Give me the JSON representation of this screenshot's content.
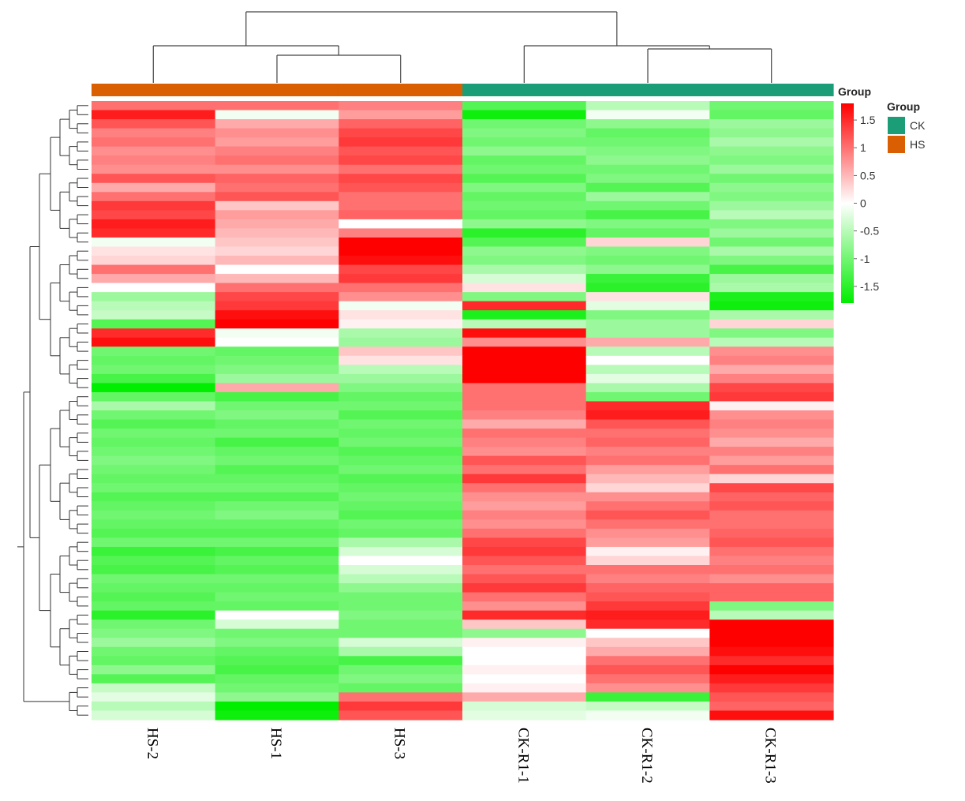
{
  "chart_data": {
    "type": "heatmap",
    "columns": [
      "HS-2",
      "HS-1",
      "HS-3",
      "CK-R1-1",
      "CK-R1-2",
      "CK-R1-3"
    ],
    "column_groups": [
      "HS",
      "HS",
      "HS",
      "CK",
      "CK",
      "CK"
    ],
    "groups": [
      {
        "name": "CK",
        "color": "#1b9e77"
      },
      {
        "name": "HS",
        "color": "#d95f02"
      }
    ],
    "group_annotation_title": "Group",
    "legend_title": "Group",
    "color_scale": {
      "min": -1.8,
      "max": 1.8,
      "low_color": "#00ee00",
      "mid_color": "#ffffff",
      "high_color": "#ff0000",
      "ticks": [
        1.5,
        1,
        0.5,
        0,
        -0.5,
        -1,
        -1.5
      ],
      "tick_labels": [
        "1.5",
        "1",
        "0.5",
        "0",
        "-0.5",
        "-1",
        "-1.5"
      ]
    },
    "values": [
      [
        1.0,
        1.0,
        0.9,
        -1.2,
        -0.5,
        -1.0
      ],
      [
        1.6,
        -0.1,
        0.7,
        -1.7,
        -0.1,
        -1.1
      ],
      [
        1.2,
        0.6,
        1.1,
        -1.0,
        -0.8,
        -0.7
      ],
      [
        0.9,
        0.8,
        1.3,
        -0.9,
        -1.1,
        -0.8
      ],
      [
        1.0,
        0.7,
        1.4,
        -1.0,
        -1.0,
        -0.6
      ],
      [
        0.8,
        0.9,
        1.2,
        -0.8,
        -0.9,
        -0.8
      ],
      [
        0.9,
        1.0,
        1.3,
        -1.1,
        -0.8,
        -0.9
      ],
      [
        0.8,
        0.8,
        1.0,
        -1.0,
        -1.0,
        -0.7
      ],
      [
        1.2,
        1.1,
        1.3,
        -1.2,
        -0.9,
        -1.0
      ],
      [
        0.6,
        1.0,
        1.2,
        -0.9,
        -1.2,
        -0.8
      ],
      [
        1.0,
        1.2,
        1.0,
        -1.1,
        -0.7,
        -0.9
      ],
      [
        1.4,
        0.4,
        1.0,
        -1.0,
        -1.0,
        -0.7
      ],
      [
        1.3,
        0.7,
        1.1,
        -1.1,
        -1.3,
        -0.5
      ],
      [
        1.6,
        0.6,
        0.0,
        -0.8,
        -0.9,
        -0.9
      ],
      [
        1.5,
        0.5,
        0.9,
        -1.5,
        -1.1,
        -0.7
      ],
      [
        -0.1,
        0.4,
        1.8,
        -1.2,
        0.3,
        -1.0
      ],
      [
        0.2,
        0.3,
        1.8,
        -0.8,
        -0.9,
        -0.6
      ],
      [
        0.3,
        0.5,
        1.7,
        -0.9,
        -1.0,
        -0.9
      ],
      [
        1.0,
        0.0,
        1.3,
        -0.6,
        -0.8,
        -1.3
      ],
      [
        0.6,
        0.5,
        1.4,
        -0.3,
        -1.4,
        -0.7
      ],
      [
        0.0,
        1.0,
        1.0,
        0.2,
        -1.5,
        -0.6
      ],
      [
        -0.7,
        1.3,
        0.8,
        -0.9,
        0.2,
        -1.6
      ],
      [
        -0.5,
        1.4,
        -0.1,
        1.5,
        -0.2,
        -1.7
      ],
      [
        -0.4,
        1.7,
        0.2,
        -1.6,
        -0.9,
        -0.6
      ],
      [
        -1.2,
        1.8,
        0.1,
        -0.5,
        -0.7,
        0.3
      ],
      [
        1.5,
        -0.1,
        -0.6,
        1.7,
        -0.7,
        -0.9
      ],
      [
        1.7,
        0.0,
        -0.7,
        0.8,
        0.6,
        -0.5
      ],
      [
        -1.0,
        -1.1,
        0.4,
        1.8,
        -0.5,
        0.8
      ],
      [
        -1.1,
        -1.0,
        0.2,
        1.9,
        0.0,
        0.9
      ],
      [
        -1.0,
        -0.9,
        -0.5,
        1.8,
        -0.5,
        0.6
      ],
      [
        -1.3,
        -0.7,
        -0.7,
        1.8,
        -0.2,
        0.9
      ],
      [
        -1.9,
        0.6,
        -0.9,
        1.0,
        -0.6,
        1.3
      ],
      [
        -1.1,
        -1.3,
        -1.1,
        1.0,
        -1.0,
        1.4
      ],
      [
        -0.6,
        -1.0,
        -1.0,
        1.0,
        1.5,
        0.1
      ],
      [
        -1.0,
        -0.9,
        -1.2,
        0.9,
        1.6,
        0.8
      ],
      [
        -1.2,
        -1.1,
        -1.0,
        0.6,
        1.2,
        0.9
      ],
      [
        -1.0,
        -1.0,
        -1.1,
        1.0,
        1.0,
        0.8
      ],
      [
        -1.1,
        -1.3,
        -1.0,
        0.9,
        1.1,
        0.6
      ],
      [
        -1.0,
        -1.1,
        -1.2,
        0.8,
        0.9,
        0.9
      ],
      [
        -0.9,
        -1.0,
        -1.1,
        1.2,
        1.0,
        0.7
      ],
      [
        -1.0,
        -1.2,
        -1.0,
        1.0,
        0.7,
        1.0
      ],
      [
        -1.1,
        -1.1,
        -1.2,
        1.4,
        0.5,
        0.3
      ],
      [
        -1.0,
        -1.0,
        -1.1,
        1.0,
        0.3,
        1.3
      ],
      [
        -1.2,
        -1.2,
        -1.0,
        0.8,
        0.8,
        1.1
      ],
      [
        -1.1,
        -1.0,
        -1.1,
        0.7,
        1.0,
        1.2
      ],
      [
        -1.0,
        -0.9,
        -1.2,
        0.9,
        1.2,
        1.0
      ],
      [
        -1.1,
        -1.1,
        -1.0,
        0.8,
        1.0,
        1.0
      ],
      [
        -1.2,
        -1.2,
        -1.1,
        1.0,
        0.8,
        1.1
      ],
      [
        -1.0,
        -1.0,
        -0.6,
        1.3,
        0.7,
        1.2
      ],
      [
        -1.4,
        -1.3,
        -0.3,
        1.4,
        0.1,
        1.0
      ],
      [
        -1.2,
        -1.1,
        0.0,
        1.2,
        0.3,
        0.9
      ],
      [
        -1.3,
        -1.2,
        -0.3,
        1.0,
        1.0,
        1.0
      ],
      [
        -1.0,
        -1.0,
        -0.5,
        1.2,
        0.9,
        0.8
      ],
      [
        -1.1,
        -1.1,
        -0.8,
        1.4,
        1.1,
        1.1
      ],
      [
        -1.2,
        -1.0,
        -1.0,
        1.0,
        1.2,
        1.1
      ],
      [
        -1.1,
        -1.1,
        -1.0,
        0.8,
        1.4,
        -0.9
      ],
      [
        -1.5,
        0.0,
        -0.9,
        1.5,
        1.6,
        -0.5
      ],
      [
        -1.0,
        -0.3,
        -1.0,
        0.4,
        1.5,
        1.8
      ],
      [
        -0.9,
        -1.0,
        -1.0,
        -0.8,
        0.0,
        1.9
      ],
      [
        -0.7,
        -0.9,
        -0.3,
        0.1,
        0.4,
        1.8
      ],
      [
        -1.0,
        -1.1,
        -0.6,
        0.0,
        0.6,
        1.7
      ],
      [
        -1.1,
        -1.2,
        -1.3,
        0.0,
        1.0,
        1.5
      ],
      [
        -0.8,
        -1.3,
        -1.0,
        0.1,
        1.2,
        1.8
      ],
      [
        -1.2,
        -1.1,
        -0.9,
        0.0,
        1.0,
        1.6
      ],
      [
        -0.4,
        -1.0,
        -1.1,
        0.1,
        0.8,
        1.4
      ],
      [
        -0.2,
        -0.8,
        1.0,
        0.6,
        -1.4,
        1.2
      ],
      [
        -0.5,
        -1.8,
        1.4,
        -0.3,
        -0.4,
        1.1
      ],
      [
        -0.3,
        -1.7,
        1.2,
        -0.2,
        -0.1,
        1.7
      ]
    ]
  }
}
